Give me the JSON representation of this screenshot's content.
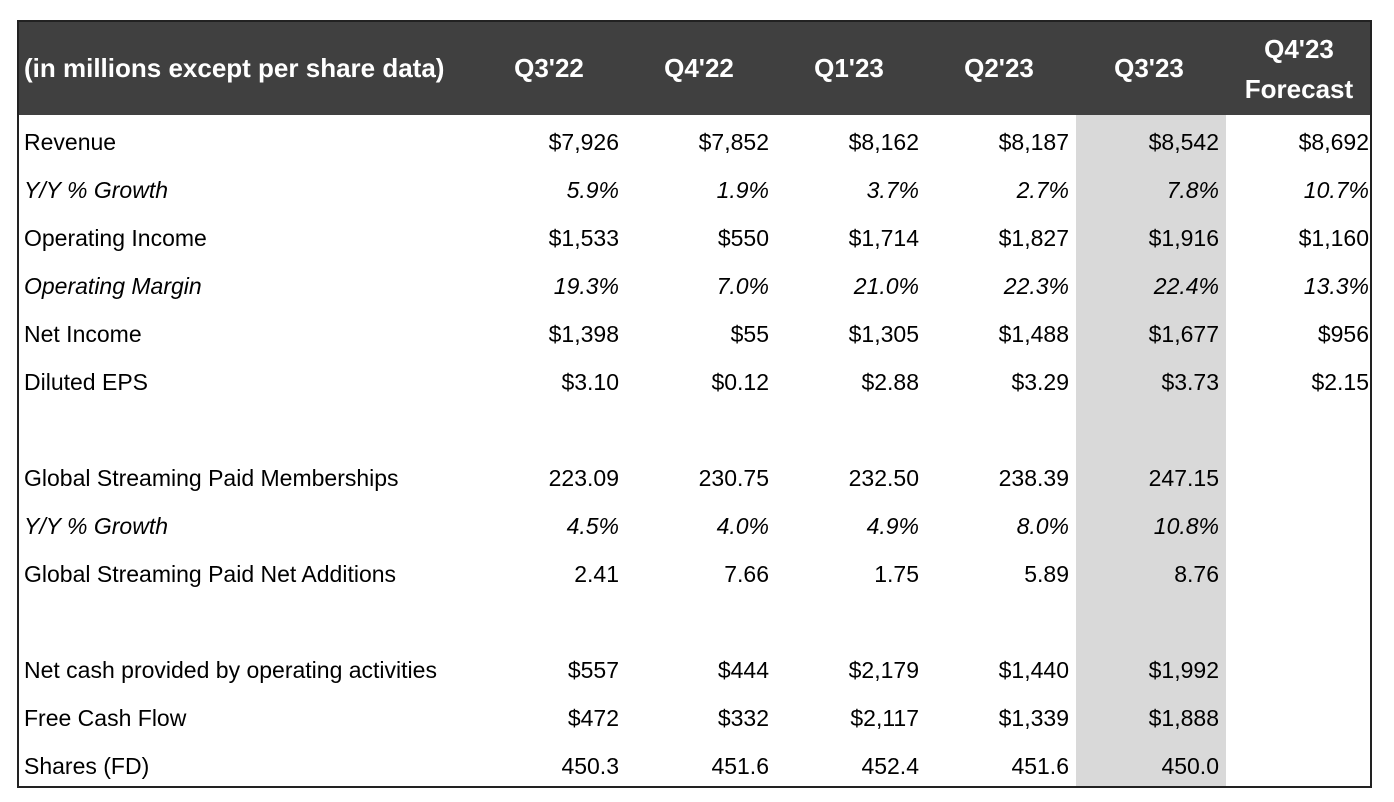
{
  "header": {
    "label": "(in millions except per share data)",
    "quarters": [
      "Q3'22",
      "Q4'22",
      "Q1'23",
      "Q2'23",
      "Q3'23"
    ],
    "forecast_line1": "Q4'23",
    "forecast_line2": "Forecast"
  },
  "colors": {
    "header_bg": "#404040",
    "header_text": "#ffffff",
    "highlight_col": "#d9d9d9",
    "border": "#222222"
  },
  "rows": {
    "revenue": {
      "label": "Revenue",
      "values": [
        "$7,926",
        "$7,852",
        "$8,162",
        "$8,187",
        "$8,542",
        "$8,692"
      ]
    },
    "revenue_growth": {
      "label": "Y/Y % Growth",
      "values": [
        "5.9%",
        "1.9%",
        "3.7%",
        "2.7%",
        "7.8%",
        "10.7%"
      ]
    },
    "operating_income": {
      "label": "Operating Income",
      "values": [
        "$1,533",
        "$550",
        "$1,714",
        "$1,827",
        "$1,916",
        "$1,160"
      ]
    },
    "operating_margin": {
      "label": "Operating Margin",
      "values": [
        "19.3%",
        "7.0%",
        "21.0%",
        "22.3%",
        "22.4%",
        "13.3%"
      ]
    },
    "net_income": {
      "label": "Net Income",
      "values": [
        "$1,398",
        "$55",
        "$1,305",
        "$1,488",
        "$1,677",
        "$956"
      ]
    },
    "diluted_eps": {
      "label": "Diluted EPS",
      "values": [
        "$3.10",
        "$0.12",
        "$2.88",
        "$3.29",
        "$3.73",
        "$2.15"
      ]
    },
    "paid_memberships": {
      "label": "Global Streaming Paid Memberships",
      "values": [
        "223.09",
        "230.75",
        "232.50",
        "238.39",
        "247.15"
      ]
    },
    "memberships_growth": {
      "label": "Y/Y % Growth",
      "values": [
        "4.5%",
        "4.0%",
        "4.9%",
        "8.0%",
        "10.8%"
      ]
    },
    "net_additions": {
      "label": "Global Streaming Paid Net Additions",
      "values": [
        "2.41",
        "7.66",
        "1.75",
        "5.89",
        "8.76"
      ]
    },
    "net_cash_operating": {
      "label": "Net cash provided by operating activities",
      "values": [
        "$557",
        "$444",
        "$2,179",
        "$1,440",
        "$1,992"
      ]
    },
    "free_cash_flow": {
      "label": "Free Cash Flow",
      "values": [
        "$472",
        "$332",
        "$2,117",
        "$1,339",
        "$1,888"
      ]
    },
    "shares_fd": {
      "label": "Shares (FD)",
      "values": [
        "450.3",
        "451.6",
        "452.4",
        "451.6",
        "450.0"
      ]
    }
  }
}
